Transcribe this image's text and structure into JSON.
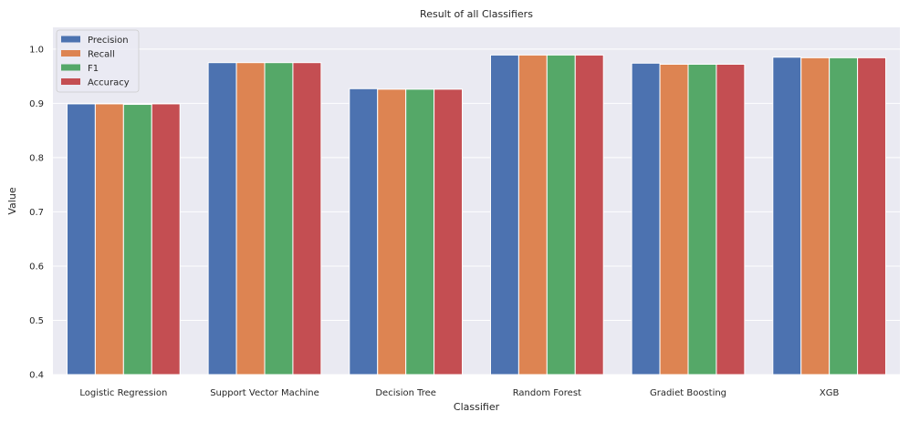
{
  "chart_data": {
    "type": "bar",
    "title": "Result of all Classifiers",
    "xlabel": "Classifier",
    "ylabel": "Value",
    "ylim": [
      0.4,
      1.04
    ],
    "yticks": [
      "0.4",
      "0.5",
      "0.6",
      "0.7",
      "0.8",
      "0.9",
      "1.0"
    ],
    "ytick_values": [
      0.4,
      0.5,
      0.6,
      0.7,
      0.8,
      0.9,
      1.0
    ],
    "grid": true,
    "legend_position": "top-left",
    "categories": [
      "Logistic Regression",
      "Support Vector Machine",
      "Decision Tree",
      "Random Forest",
      "Gradiet Boosting",
      "XGB"
    ],
    "series": [
      {
        "name": "Precision",
        "color": "#4c72b0",
        "values": [
          0.899,
          0.975,
          0.927,
          0.989,
          0.974,
          0.985
        ]
      },
      {
        "name": "Recall",
        "color": "#dd8452",
        "values": [
          0.899,
          0.975,
          0.926,
          0.989,
          0.972,
          0.984
        ]
      },
      {
        "name": "F1",
        "color": "#55a868",
        "values": [
          0.898,
          0.975,
          0.926,
          0.989,
          0.972,
          0.984
        ]
      },
      {
        "name": "Accuracy",
        "color": "#c44e52",
        "values": [
          0.899,
          0.975,
          0.926,
          0.989,
          0.972,
          0.984
        ]
      }
    ],
    "background_color": "#eaeaf2",
    "grid_color": "#ffffff"
  }
}
